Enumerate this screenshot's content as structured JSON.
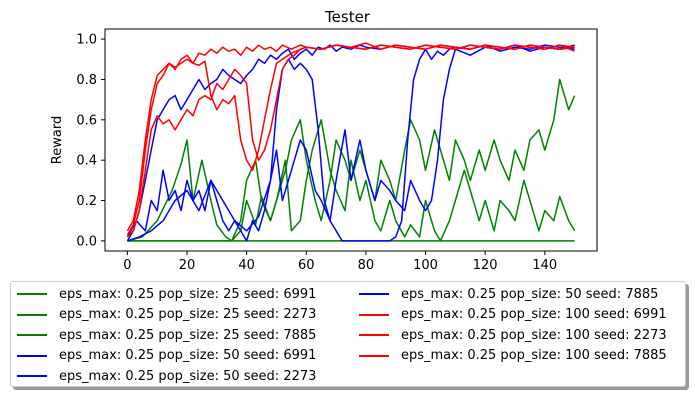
{
  "chart_data": {
    "type": "line",
    "title": "Tester",
    "xlabel": "",
    "ylabel": "Reward",
    "xlim": [
      -7.5,
      157.5
    ],
    "ylim": [
      -0.05,
      1.05
    ],
    "xticks": [
      0,
      20,
      40,
      60,
      80,
      100,
      120,
      140
    ],
    "yticks": [
      0.0,
      0.2,
      0.4,
      0.6,
      0.8,
      1.0
    ],
    "xtick_labels": [
      "0",
      "20",
      "40",
      "60",
      "80",
      "100",
      "120",
      "140"
    ],
    "ytick_labels": [
      "0.0",
      "0.2",
      "0.4",
      "0.6",
      "0.8",
      "1.0"
    ],
    "grid": false,
    "legend_placement": "below",
    "series": [
      {
        "name": "eps_max: 0.25 pop_size: 25 seed: 6991",
        "color": "#008000",
        "x": [
          0,
          5,
          10,
          15,
          20,
          25,
          30,
          35,
          40,
          45,
          50,
          55,
          60,
          65,
          70,
          75,
          80,
          85,
          90,
          95,
          100,
          105,
          110,
          115,
          120,
          125,
          130,
          135,
          140,
          145,
          150
        ],
        "y": [
          0,
          0,
          0,
          0,
          0,
          0,
          0,
          0,
          0,
          0,
          0,
          0,
          0,
          0,
          0,
          0,
          0,
          0,
          0,
          0,
          0,
          0,
          0,
          0,
          0,
          0,
          0,
          0,
          0,
          0,
          0
        ]
      },
      {
        "name": "eps_max: 0.25 pop_size: 25 seed: 2273",
        "color": "#008000",
        "x": [
          0,
          5,
          10,
          15,
          18,
          20,
          22,
          25,
          28,
          30,
          33,
          35,
          38,
          40,
          43,
          45,
          48,
          50,
          53,
          55,
          58,
          60,
          62,
          65,
          68,
          70,
          73,
          75,
          78,
          80,
          83,
          85,
          88,
          90,
          93,
          95,
          98,
          100,
          103,
          105,
          108,
          110,
          113,
          115,
          118,
          120,
          123,
          125,
          128,
          130,
          133,
          135,
          138,
          140,
          143,
          145,
          148,
          150
        ],
        "y": [
          0,
          0.02,
          0.1,
          0.25,
          0.38,
          0.5,
          0.2,
          0.4,
          0.2,
          0.08,
          0.02,
          0,
          0.05,
          0.2,
          0.08,
          0.22,
          0.1,
          0.2,
          0.4,
          0.05,
          0.1,
          0.3,
          0.45,
          0.6,
          0.35,
          0.25,
          0.15,
          0.4,
          0.2,
          0.3,
          0.1,
          0.05,
          0.2,
          0.1,
          0.02,
          0.08,
          0.02,
          0.2,
          0.05,
          0.0,
          0.1,
          0.2,
          0.35,
          0.25,
          0.1,
          0.2,
          0.05,
          0.2,
          0.15,
          0.1,
          0.3,
          0.2,
          0.05,
          0.15,
          0.1,
          0.22,
          0.1,
          0.05
        ]
      },
      {
        "name": "eps_max: 0.25 pop_size: 25 seed: 7885",
        "color": "#008000",
        "x": [
          0,
          5,
          10,
          15,
          20,
          25,
          30,
          35,
          38,
          40,
          43,
          45,
          48,
          50,
          53,
          55,
          58,
          60,
          63,
          65,
          68,
          70,
          73,
          75,
          78,
          80,
          83,
          85,
          88,
          90,
          93,
          95,
          98,
          100,
          103,
          105,
          108,
          110,
          113,
          115,
          118,
          120,
          123,
          125,
          128,
          130,
          133,
          135,
          138,
          140,
          143,
          145,
          148,
          150
        ],
        "y": [
          0,
          0,
          0,
          0,
          0,
          0,
          0,
          0,
          0.1,
          0.3,
          0.4,
          0.2,
          0.1,
          0.2,
          0.35,
          0.5,
          0.6,
          0.4,
          0.2,
          0.1,
          0.3,
          0.5,
          0.4,
          0.3,
          0.45,
          0.35,
          0.2,
          0.4,
          0.3,
          0.2,
          0.45,
          0.6,
          0.5,
          0.35,
          0.55,
          0.45,
          0.3,
          0.5,
          0.4,
          0.3,
          0.45,
          0.35,
          0.5,
          0.4,
          0.3,
          0.45,
          0.35,
          0.5,
          0.55,
          0.45,
          0.6,
          0.8,
          0.65,
          0.72
        ]
      },
      {
        "name": "eps_max: 0.25 pop_size: 50 seed: 6991",
        "color": "#0000ff",
        "x": [
          0,
          2,
          4,
          6,
          8,
          10,
          12,
          14,
          16,
          18,
          20,
          22,
          24,
          26,
          28,
          30,
          32,
          34,
          36,
          38,
          40,
          42,
          44,
          46,
          48,
          50,
          52,
          54,
          56,
          58,
          60,
          62,
          64,
          66,
          68,
          70,
          72,
          75,
          78,
          80,
          85,
          90,
          95,
          100,
          105,
          110,
          115,
          120,
          125,
          130,
          135,
          140,
          145,
          150
        ],
        "y": [
          0,
          0.05,
          0.15,
          0.3,
          0.45,
          0.6,
          0.65,
          0.7,
          0.72,
          0.65,
          0.7,
          0.75,
          0.8,
          0.75,
          0.78,
          0.8,
          0.85,
          0.82,
          0.8,
          0.78,
          0.82,
          0.85,
          0.9,
          0.88,
          0.92,
          0.9,
          0.93,
          0.95,
          0.9,
          0.93,
          0.95,
          0.92,
          0.96,
          0.95,
          0.97,
          0.94,
          0.96,
          0.95,
          0.97,
          0.96,
          0.95,
          0.97,
          0.96,
          0.95,
          0.97,
          0.96,
          0.95,
          0.97,
          0.96,
          0.95,
          0.97,
          0.96,
          0.95,
          0.96
        ]
      },
      {
        "name": "eps_max: 0.25 pop_size: 50 seed: 2273",
        "color": "#0000ff",
        "x": [
          0,
          3,
          6,
          8,
          10,
          12,
          14,
          16,
          18,
          20,
          22,
          24,
          26,
          28,
          30,
          32,
          34,
          36,
          38,
          40,
          42,
          44,
          46,
          48,
          50,
          52,
          55,
          58,
          60,
          63,
          65,
          68,
          70,
          73,
          75,
          78,
          80,
          83,
          85,
          88,
          90,
          93,
          95,
          98,
          100,
          102,
          104,
          106,
          108,
          110,
          115,
          120,
          125,
          130,
          135,
          140,
          145,
          150
        ],
        "y": [
          0.02,
          0.1,
          0.05,
          0.2,
          0.15,
          0.35,
          0.2,
          0.25,
          0.15,
          0.3,
          0.2,
          0.25,
          0.15,
          0.3,
          0.2,
          0.1,
          0.05,
          0.1,
          0.05,
          0.0,
          0.1,
          0.05,
          0.15,
          0.3,
          0.45,
          0.2,
          0.35,
          0.5,
          0.45,
          0.25,
          0.2,
          0.1,
          0.3,
          0.55,
          0.3,
          0.5,
          0.35,
          0.2,
          0.3,
          0.25,
          0.2,
          0.15,
          0.3,
          0.2,
          0.15,
          0.2,
          0.4,
          0.7,
          0.85,
          0.95,
          0.92,
          0.96,
          0.95,
          0.97,
          0.94,
          0.96,
          0.95,
          0.97
        ]
      },
      {
        "name": "eps_max: 0.25 pop_size: 50 seed: 7885",
        "color": "#0000ff",
        "x": [
          0,
          4,
          8,
          12,
          16,
          20,
          24,
          28,
          32,
          36,
          40,
          44,
          48,
          50,
          52,
          54,
          56,
          58,
          60,
          62,
          64,
          66,
          68,
          70,
          72,
          74,
          76,
          78,
          80,
          82,
          84,
          86,
          88,
          90,
          92,
          94,
          96,
          98,
          100,
          102,
          104,
          106,
          108,
          110,
          115,
          120,
          125,
          130,
          135,
          140,
          145,
          150
        ],
        "y": [
          0,
          0.02,
          0.05,
          0.1,
          0.2,
          0.25,
          0.15,
          0.3,
          0.2,
          0.1,
          0.05,
          0.12,
          0.3,
          0.65,
          0.85,
          0.9,
          0.85,
          0.88,
          0.85,
          0.8,
          0.55,
          0.2,
          0.1,
          0.05,
          0.0,
          0.0,
          0.0,
          0.0,
          0.0,
          0.0,
          0.0,
          0.0,
          0.0,
          0.02,
          0.1,
          0.5,
          0.8,
          0.9,
          0.95,
          0.9,
          0.94,
          0.92,
          0.95,
          0.96,
          0.95,
          0.97,
          0.94,
          0.96,
          0.95,
          0.97,
          0.96,
          0.95
        ]
      },
      {
        "name": "eps_max: 0.25 pop_size: 100 seed: 6991",
        "color": "#ff0000",
        "x": [
          0,
          2,
          4,
          6,
          8,
          10,
          12,
          14,
          16,
          18,
          20,
          22,
          24,
          26,
          28,
          30,
          32,
          34,
          36,
          38,
          40,
          42,
          44,
          46,
          48,
          50,
          52,
          55,
          58,
          60,
          65,
          70,
          75,
          80,
          85,
          90,
          95,
          100,
          105,
          110,
          115,
          120,
          125,
          130,
          135,
          140,
          145,
          150
        ],
        "y": [
          0.03,
          0.08,
          0.2,
          0.45,
          0.65,
          0.78,
          0.82,
          0.88,
          0.85,
          0.9,
          0.92,
          0.88,
          0.93,
          0.92,
          0.95,
          0.93,
          0.96,
          0.94,
          0.95,
          0.92,
          0.96,
          0.94,
          0.97,
          0.95,
          0.96,
          0.94,
          0.97,
          0.95,
          0.97,
          0.96,
          0.95,
          0.97,
          0.96,
          0.98,
          0.95,
          0.97,
          0.96,
          0.95,
          0.97,
          0.96,
          0.95,
          0.97,
          0.96,
          0.95,
          0.97,
          0.96,
          0.95,
          0.96
        ]
      },
      {
        "name": "eps_max: 0.25 pop_size: 100 seed: 2273",
        "color": "#ff0000",
        "x": [
          0,
          2,
          4,
          6,
          8,
          10,
          12,
          14,
          16,
          18,
          20,
          22,
          24,
          26,
          28,
          30,
          32,
          34,
          36,
          38,
          40,
          42,
          44,
          46,
          48,
          50,
          52,
          54,
          56,
          58,
          60,
          65,
          70,
          75,
          80,
          85,
          90,
          95,
          100,
          105,
          110,
          115,
          120,
          125,
          130,
          135,
          140,
          145,
          150
        ],
        "y": [
          0.02,
          0.05,
          0.15,
          0.35,
          0.55,
          0.62,
          0.58,
          0.6,
          0.55,
          0.6,
          0.65,
          0.62,
          0.7,
          0.72,
          0.7,
          0.78,
          0.75,
          0.8,
          0.85,
          0.82,
          0.78,
          0.5,
          0.4,
          0.45,
          0.55,
          0.7,
          0.85,
          0.9,
          0.92,
          0.95,
          0.96,
          0.95,
          0.97,
          0.96,
          0.95,
          0.97,
          0.96,
          0.95,
          0.97,
          0.96,
          0.95,
          0.97,
          0.96,
          0.95,
          0.97,
          0.96,
          0.95,
          0.97,
          0.94
        ]
      },
      {
        "name": "eps_max: 0.25 pop_size: 100 seed: 7885",
        "color": "#ff0000",
        "x": [
          0,
          2,
          4,
          6,
          8,
          10,
          12,
          14,
          16,
          18,
          20,
          22,
          24,
          26,
          28,
          30,
          32,
          34,
          36,
          38,
          40,
          42,
          44,
          46,
          48,
          50,
          55,
          60,
          65,
          70,
          75,
          80,
          85,
          90,
          95,
          100,
          105,
          110,
          115,
          120,
          125,
          130,
          135,
          140,
          145,
          150
        ],
        "y": [
          0.05,
          0.1,
          0.25,
          0.5,
          0.7,
          0.82,
          0.85,
          0.88,
          0.86,
          0.88,
          0.9,
          0.88,
          0.87,
          0.89,
          0.72,
          0.65,
          0.7,
          0.68,
          0.72,
          0.5,
          0.4,
          0.35,
          0.45,
          0.6,
          0.75,
          0.88,
          0.93,
          0.96,
          0.95,
          0.97,
          0.96,
          0.95,
          0.97,
          0.96,
          0.95,
          0.97,
          0.96,
          0.95,
          0.97,
          0.96,
          0.95,
          0.97,
          0.96,
          0.95,
          0.97,
          0.96
        ]
      }
    ]
  }
}
